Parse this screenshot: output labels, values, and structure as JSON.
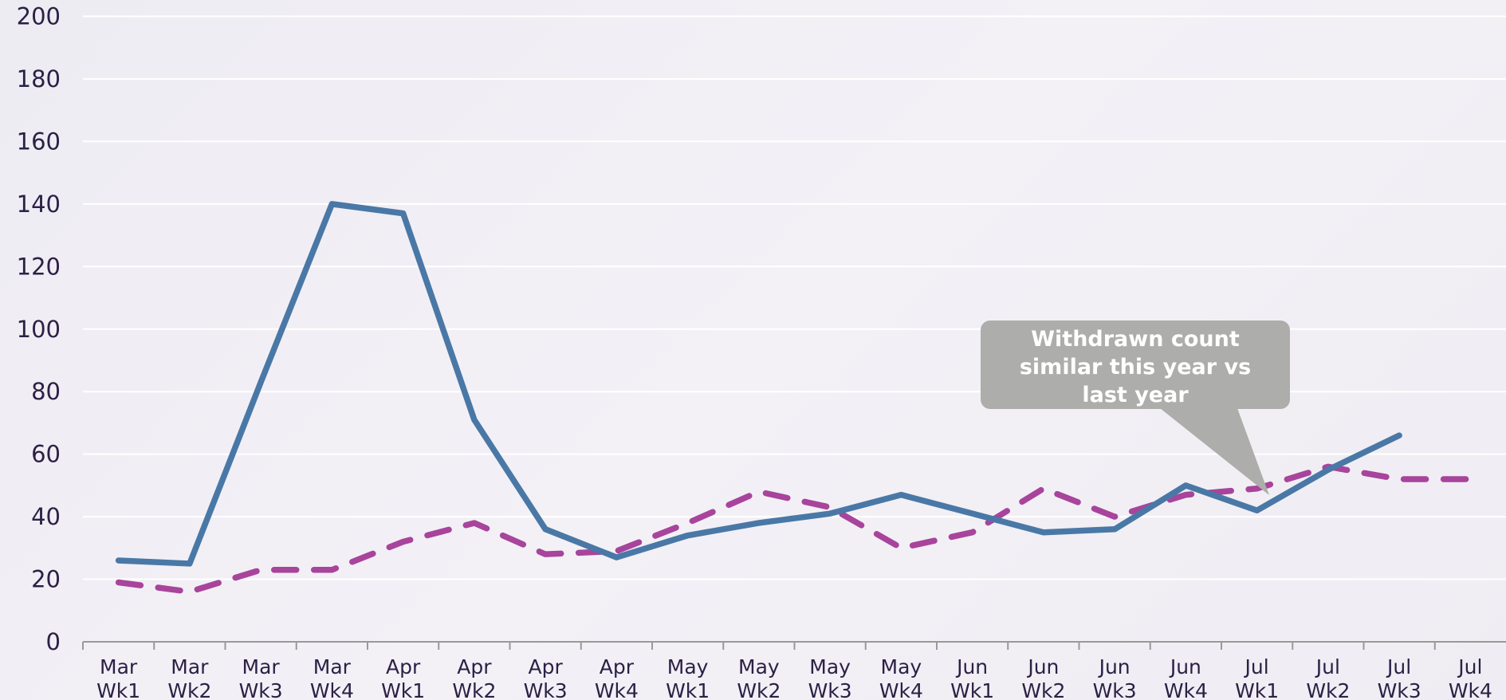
{
  "chart_data": {
    "type": "line",
    "categories": [
      "Mar Wk1",
      "Mar Wk2",
      "Mar Wk3",
      "Mar Wk4",
      "Apr Wk1",
      "Apr Wk2",
      "Apr Wk3",
      "Apr Wk4",
      "May Wk1",
      "May Wk2",
      "May Wk3",
      "May Wk4",
      "Jun Wk1",
      "Jun Wk2",
      "Jun Wk3",
      "Jun Wk4",
      "Jul Wk1",
      "Jul Wk2",
      "Jul Wk3",
      "Jul Wk4"
    ],
    "series": [
      {
        "color": "#4a78a6",
        "style": "solid",
        "values": [
          26,
          25,
          83,
          140,
          137,
          71,
          36,
          27,
          34,
          38,
          41,
          47,
          41,
          35,
          36,
          50,
          42,
          55,
          66,
          null
        ]
      },
      {
        "color": "#a8449c",
        "style": "dashed",
        "values": [
          19,
          16,
          23,
          23,
          32,
          38,
          28,
          29,
          38,
          48,
          43,
          30,
          35,
          49,
          40,
          47,
          49,
          56,
          52,
          52
        ]
      }
    ],
    "ylim": [
      0,
      200
    ],
    "yticks": [
      0,
      20,
      40,
      60,
      80,
      100,
      120,
      140,
      160,
      180,
      200
    ],
    "grid": true,
    "annotation": "Withdrawn count similar this year vs last year"
  }
}
